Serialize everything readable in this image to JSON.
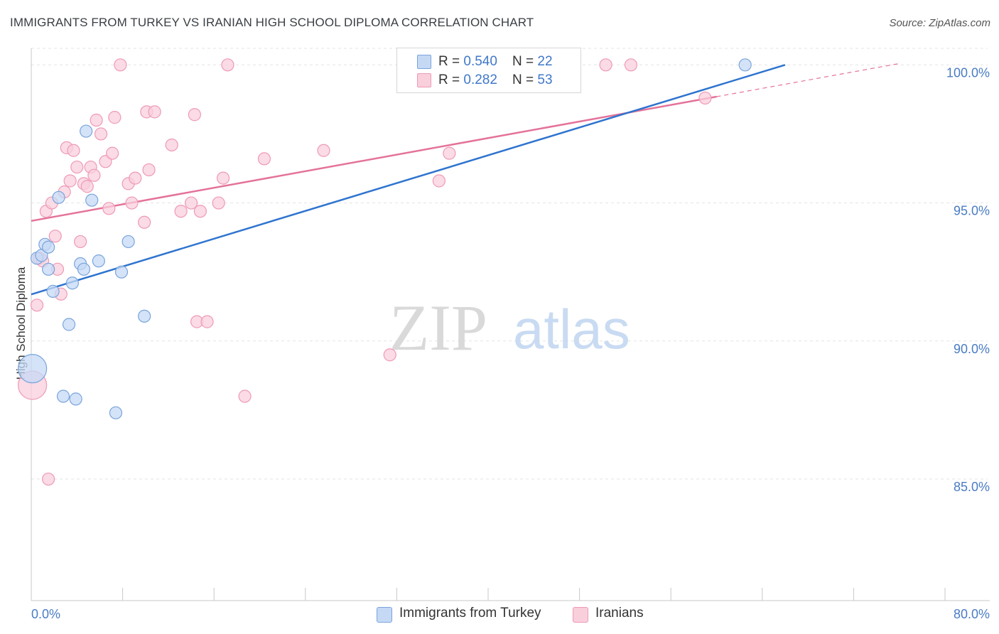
{
  "header": {
    "title": "IMMIGRANTS FROM TURKEY VS IRANIAN HIGH SCHOOL DIPLOMA CORRELATION CHART",
    "source": "Source: ZipAtlas.com"
  },
  "watermark": {
    "zip": "ZIP",
    "atlas": "atlas"
  },
  "legend": {
    "rows": [
      {
        "r_label": "R = ",
        "r_value": "0.540",
        "n_label": "N = ",
        "n_value": "22"
      },
      {
        "r_label": "R = ",
        "r_value": "0.282",
        "n_label": "N = ",
        "n_value": "53"
      }
    ]
  },
  "colors": {
    "blue_fill": "#c5d9f5",
    "blue_stroke": "#7aa4dc",
    "blue_line": "#2e74cf",
    "pink_fill": "#f9cfdc",
    "pink_stroke": "#ee9ab5",
    "pink_line": "#e4729a",
    "grid": "#e3e3e3",
    "axis_text": "#4a7cc4"
  },
  "chart_data": {
    "type": "scatter",
    "title": "IMMIGRANTS FROM TURKEY VS IRANIAN HIGH SCHOOL DIPLOMA CORRELATION CHART",
    "xlabel": "",
    "ylabel": "High School Diploma",
    "xlim": [
      0,
      80
    ],
    "ylim": [
      80.6,
      100.6
    ],
    "x_tick_labels": [
      "0.0%",
      "80.0%"
    ],
    "y_ticks": [
      85,
      90,
      95,
      100
    ],
    "y_tick_labels": [
      "85.0%",
      "90.0%",
      "95.0%",
      "100.0%"
    ],
    "legend": [
      "Immigrants from Turkey",
      "Iranians"
    ],
    "series": [
      {
        "name": "Immigrants from Turkey",
        "r": 0.54,
        "n": 22,
        "points": [
          [
            0.1,
            89.0
          ],
          [
            0.5,
            93.0
          ],
          [
            0.9,
            93.1
          ],
          [
            1.2,
            93.5
          ],
          [
            1.5,
            93.4
          ],
          [
            1.5,
            92.6
          ],
          [
            1.9,
            91.8
          ],
          [
            2.4,
            95.2
          ],
          [
            2.8,
            88.0
          ],
          [
            3.3,
            90.6
          ],
          [
            3.6,
            92.1
          ],
          [
            3.9,
            87.9
          ],
          [
            4.3,
            92.8
          ],
          [
            4.6,
            92.6
          ],
          [
            4.8,
            97.6
          ],
          [
            5.3,
            95.1
          ],
          [
            5.9,
            92.9
          ],
          [
            7.4,
            87.4
          ],
          [
            7.9,
            92.5
          ],
          [
            8.5,
            93.6
          ],
          [
            9.9,
            90.9
          ],
          [
            62.5,
            100.0
          ]
        ],
        "trend": {
          "x": [
            0,
            66
          ],
          "y": [
            91.69,
            100.0
          ]
        }
      },
      {
        "name": "Iranians",
        "r": 0.282,
        "n": 53,
        "points": [
          [
            0.1,
            88.4
          ],
          [
            0.5,
            91.3
          ],
          [
            0.7,
            93.0
          ],
          [
            1.0,
            92.9
          ],
          [
            1.3,
            94.7
          ],
          [
            1.5,
            85.0
          ],
          [
            1.8,
            95.0
          ],
          [
            2.1,
            93.8
          ],
          [
            2.3,
            92.6
          ],
          [
            2.6,
            91.7
          ],
          [
            2.9,
            95.4
          ],
          [
            3.1,
            97.0
          ],
          [
            3.4,
            95.8
          ],
          [
            3.7,
            96.9
          ],
          [
            4.0,
            96.3
          ],
          [
            4.3,
            93.6
          ],
          [
            4.6,
            95.7
          ],
          [
            4.9,
            95.6
          ],
          [
            5.2,
            96.3
          ],
          [
            5.5,
            96.0
          ],
          [
            5.7,
            98.0
          ],
          [
            6.1,
            97.5
          ],
          [
            6.5,
            96.5
          ],
          [
            6.8,
            94.8
          ],
          [
            7.1,
            96.8
          ],
          [
            7.3,
            98.1
          ],
          [
            7.8,
            100.0
          ],
          [
            8.5,
            95.7
          ],
          [
            8.8,
            95.0
          ],
          [
            9.1,
            95.9
          ],
          [
            9.9,
            94.3
          ],
          [
            10.1,
            98.3
          ],
          [
            10.3,
            96.2
          ],
          [
            10.8,
            98.3
          ],
          [
            12.3,
            97.1
          ],
          [
            13.1,
            94.7
          ],
          [
            14.0,
            95.0
          ],
          [
            14.3,
            98.2
          ],
          [
            14.5,
            90.7
          ],
          [
            14.8,
            94.7
          ],
          [
            15.4,
            90.7
          ],
          [
            16.4,
            95.0
          ],
          [
            16.8,
            95.9
          ],
          [
            17.2,
            100.0
          ],
          [
            18.7,
            88.0
          ],
          [
            20.4,
            96.6
          ],
          [
            25.6,
            96.9
          ],
          [
            31.4,
            89.5
          ],
          [
            35.7,
            95.8
          ],
          [
            36.6,
            96.8
          ],
          [
            50.3,
            100.0
          ],
          [
            52.5,
            100.0
          ],
          [
            59.0,
            98.8
          ]
        ],
        "trend": {
          "x": [
            0,
            60
          ],
          "y": [
            94.35,
            98.85
          ]
        },
        "trend_dashed_extension": {
          "x": [
            60,
            76
          ],
          "y": [
            98.85,
            100.05
          ]
        }
      }
    ]
  }
}
